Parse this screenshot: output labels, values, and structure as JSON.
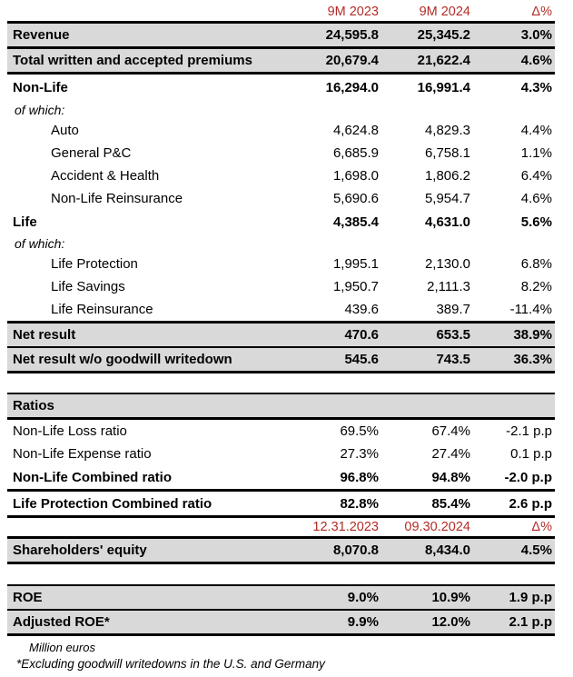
{
  "colors": {
    "accent_red": "#b22d28",
    "highlight_gray": "#d9d9d9",
    "border_black": "#000000"
  },
  "chart_data": {
    "type": "table",
    "units": "Million euros",
    "columns_flow": [
      "",
      "9M 2023",
      "9M 2024",
      "Δ%"
    ],
    "columns_balance": [
      "",
      "12.31.2023",
      "09.30.2024",
      "Δ%"
    ],
    "rows": [
      {
        "cls": "header",
        "label": "",
        "v1": "9M 2023",
        "v2": "9M 2024",
        "d": "Δ%"
      },
      {
        "cls": "hl",
        "label": "Revenue",
        "v1": "24,595.8",
        "v2": "25,345.2",
        "d": "3.0%"
      },
      {
        "cls": "hl",
        "label": "Total written and accepted premiums",
        "v1": "20,679.4",
        "v2": "21,622.4",
        "d": "4.6%"
      },
      {
        "cls": "bold tall",
        "label": "Non-Life",
        "v1": "16,294.0",
        "v2": "16,991.4",
        "d": "4.3%"
      },
      {
        "cls": "ofwhich",
        "label": "of which:",
        "v1": "",
        "v2": "",
        "d": ""
      },
      {
        "cls": "indent",
        "label": "Auto",
        "v1": "4,624.8",
        "v2": "4,829.3",
        "d": "4.4%"
      },
      {
        "cls": "indent",
        "label": "General P&C",
        "v1": "6,685.9",
        "v2": "6,758.1",
        "d": "1.1%"
      },
      {
        "cls": "indent",
        "label": "Accident & Health",
        "v1": "1,698.0",
        "v2": "1,806.2",
        "d": "6.4%"
      },
      {
        "cls": "indent",
        "label": "Non-Life Reinsurance",
        "v1": "5,690.6",
        "v2": "5,954.7",
        "d": "4.6%"
      },
      {
        "cls": "bold",
        "label": "Life",
        "v1": "4,385.4",
        "v2": "4,631.0",
        "d": "5.6%"
      },
      {
        "cls": "ofwhich",
        "label": "of which:",
        "v1": "",
        "v2": "",
        "d": ""
      },
      {
        "cls": "indent",
        "label": "Life Protection",
        "v1": "1,995.1",
        "v2": "2,130.0",
        "d": "6.8%"
      },
      {
        "cls": "indent",
        "label": "Life Savings",
        "v1": "1,950.7",
        "v2": "2,111.3",
        "d": "8.2%"
      },
      {
        "cls": "indent",
        "label": "Life Reinsurance",
        "v1": "439.6",
        "v2": "389.7",
        "d": "-11.4%"
      },
      {
        "cls": "hl bt mid",
        "label": "Net result",
        "v1": "470.6",
        "v2": "653.5",
        "d": "38.9%"
      },
      {
        "cls": "hl",
        "label": "Net result w/o goodwill writedown",
        "v1": "545.6",
        "v2": "743.5",
        "d": "36.3%"
      },
      {
        "cls": "spacer"
      },
      {
        "cls": "hl thintop",
        "label": "Ratios",
        "v1": "",
        "v2": "",
        "d": ""
      },
      {
        "cls": "plain",
        "label": "Non-Life Loss ratio",
        "v1": "69.5%",
        "v2": "67.4%",
        "d": "-2.1 p.p"
      },
      {
        "cls": "plain",
        "label": "Non-Life Expense ratio",
        "v1": "27.3%",
        "v2": "27.4%",
        "d": "0.1 p.p"
      },
      {
        "cls": "bold bb",
        "label": "Non-Life Combined ratio",
        "v1": "96.8%",
        "v2": "94.8%",
        "d": "-2.0 p.p"
      },
      {
        "cls": "bold bb",
        "label": "Life Protection Combined ratio",
        "v1": "82.8%",
        "v2": "85.4%",
        "d": "2.6 p.p"
      },
      {
        "cls": "header",
        "label": "",
        "v1": "12.31.2023",
        "v2": "09.30.2024",
        "d": "Δ%"
      },
      {
        "cls": "hl",
        "label": "Shareholders' equity",
        "v1": "8,070.8",
        "v2": "8,434.0",
        "d": "4.5%"
      },
      {
        "cls": "spacer sp2"
      },
      {
        "cls": "hl thintop mid",
        "label": "ROE",
        "v1": "9.0%",
        "v2": "10.9%",
        "d": "1.9 p.p"
      },
      {
        "cls": "hl",
        "label": "Adjusted ROE*",
        "v1": "9.9%",
        "v2": "12.0%",
        "d": "2.1 p.p"
      }
    ],
    "footnotes": [
      "Million euros",
      "*Excluding goodwill writedowns in the U.S. and Germany"
    ]
  }
}
